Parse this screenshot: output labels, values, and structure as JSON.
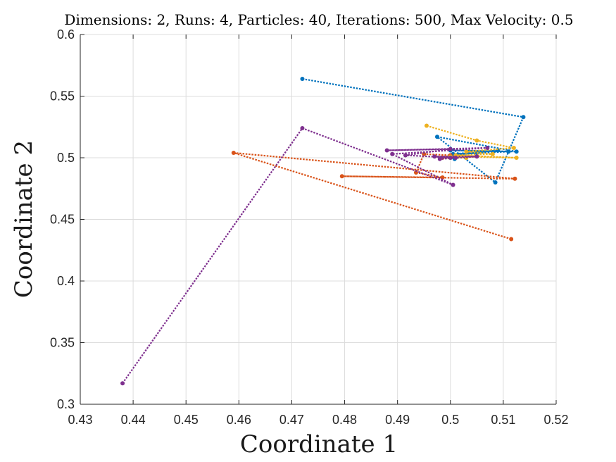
{
  "chart_data": {
    "type": "line",
    "title": "Dimensions: 2, Runs: 4, Particles: 40, Iterations: 500, Max Velocity: 0.5",
    "xlabel": "Coordinate 1",
    "ylabel": "Coordinate 2",
    "xlim": [
      0.43,
      0.52
    ],
    "ylim": [
      0.3,
      0.6
    ],
    "xticks": [
      0.43,
      0.44,
      0.45,
      0.46,
      0.47,
      0.48,
      0.49,
      0.5,
      0.51,
      0.52
    ],
    "yticks": [
      0.3,
      0.35,
      0.4,
      0.45,
      0.5,
      0.55,
      0.6
    ],
    "xtick_labels": [
      "0.43",
      "0.44",
      "0.45",
      "0.46",
      "0.47",
      "0.48",
      "0.49",
      "0.5",
      "0.51",
      "0.52"
    ],
    "ytick_labels": [
      "0.3",
      "0.35",
      "0.4",
      "0.45",
      "0.5",
      "0.55",
      "0.6"
    ],
    "grid": true,
    "legend": false,
    "series": [
      {
        "color": "#0072BD",
        "points": [
          [
            0.472,
            0.564
          ],
          [
            0.5138,
            0.533
          ],
          [
            0.5085,
            0.48
          ],
          [
            0.4975,
            0.517
          ],
          [
            0.5125,
            0.505
          ],
          [
            0.5,
            0.506
          ],
          [
            0.511,
            0.505
          ],
          [
            0.5005,
            0.503
          ],
          [
            0.509,
            0.506
          ],
          [
            0.5,
            0.502
          ],
          [
            0.505,
            0.504
          ],
          [
            0.5,
            0.501
          ],
          [
            0.5008,
            0.499
          ],
          [
            0.5,
            0.5
          ]
        ]
      },
      {
        "color": "#D95319",
        "points": [
          [
            0.5115,
            0.434
          ],
          [
            0.459,
            0.504
          ],
          [
            0.5122,
            0.483
          ],
          [
            0.4795,
            0.485
          ],
          [
            0.4985,
            0.484
          ],
          [
            0.4935,
            0.488
          ],
          [
            0.495,
            0.503
          ],
          [
            0.5,
            0.502
          ],
          [
            0.4985,
            0.5
          ],
          [
            0.5,
            0.5
          ]
        ]
      },
      {
        "color": "#EDB120",
        "points": [
          [
            0.4955,
            0.526
          ],
          [
            0.505,
            0.514
          ],
          [
            0.512,
            0.508
          ],
          [
            0.503,
            0.505
          ],
          [
            0.508,
            0.503
          ],
          [
            0.501,
            0.502
          ],
          [
            0.5125,
            0.5
          ],
          [
            0.5,
            0.501
          ],
          [
            0.503,
            0.5
          ],
          [
            0.5,
            0.5
          ]
        ]
      },
      {
        "color": "#7E2F8E",
        "points": [
          [
            0.438,
            0.317
          ],
          [
            0.472,
            0.524
          ],
          [
            0.5005,
            0.478
          ],
          [
            0.489,
            0.503
          ],
          [
            0.507,
            0.508
          ],
          [
            0.488,
            0.506
          ],
          [
            0.5,
            0.507
          ],
          [
            0.4915,
            0.502
          ],
          [
            0.501,
            0.5
          ],
          [
            0.497,
            0.501
          ],
          [
            0.505,
            0.501
          ],
          [
            0.498,
            0.499
          ],
          [
            0.5,
            0.5
          ]
        ]
      }
    ]
  }
}
